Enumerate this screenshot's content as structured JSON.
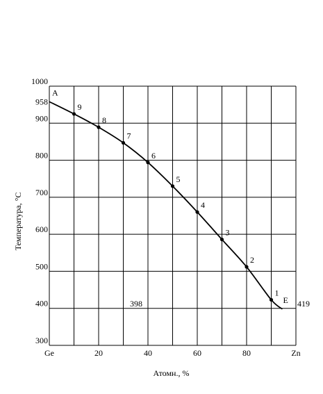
{
  "chart_data": {
    "type": "line",
    "title": "",
    "xlabel": "Атомн., %",
    "ylabel": "Температура, °C",
    "xlim": [
      0,
      100
    ],
    "ylim": [
      300,
      1000
    ],
    "x_ticks": [
      {
        "value": 0,
        "label": "Ge"
      },
      {
        "value": 20,
        "label": "20"
      },
      {
        "value": 40,
        "label": "40"
      },
      {
        "value": 60,
        "label": "60"
      },
      {
        "value": 80,
        "label": "80"
      },
      {
        "value": 100,
        "label": "Zn"
      }
    ],
    "y_ticks": [
      {
        "value": 300,
        "label": "300"
      },
      {
        "value": 400,
        "label": "400"
      },
      {
        "value": 500,
        "label": "500"
      },
      {
        "value": 600,
        "label": "600"
      },
      {
        "value": 700,
        "label": "700"
      },
      {
        "value": 800,
        "label": "800"
      },
      {
        "value": 900,
        "label": "900"
      },
      {
        "value": 1000,
        "label": "1000"
      }
    ],
    "grid": true,
    "grid_x_values": [
      0,
      10,
      20,
      30,
      40,
      50,
      60,
      70,
      80,
      90,
      100
    ],
    "grid_y_values": [
      300,
      400,
      500,
      600,
      700,
      800,
      900,
      1000
    ],
    "series": [
      {
        "name": "",
        "x": [
          0,
          10,
          20,
          30,
          40,
          50,
          60,
          70,
          80,
          90,
          94.5
        ],
        "y": [
          958,
          925,
          889,
          847,
          794,
          730,
          660,
          586,
          512,
          423,
          398
        ]
      }
    ],
    "labeled_points": [
      {
        "label": "9",
        "x": 10,
        "y": 925
      },
      {
        "label": "8",
        "x": 20,
        "y": 889
      },
      {
        "label": "7",
        "x": 30,
        "y": 847
      },
      {
        "label": "6",
        "x": 40,
        "y": 794
      },
      {
        "label": "5",
        "x": 50,
        "y": 730
      },
      {
        "label": "4",
        "x": 60,
        "y": 660
      },
      {
        "label": "3",
        "x": 70,
        "y": 586
      },
      {
        "label": "2",
        "x": 80,
        "y": 512
      },
      {
        "label": "1",
        "x": 90,
        "y": 423
      }
    ],
    "annotations": [
      {
        "text": "A",
        "x": 0,
        "y": 958
      },
      {
        "text": "E",
        "x": 94.5,
        "y": 398
      },
      {
        "text": "958",
        "x": 0,
        "y": 958
      },
      {
        "text": "398",
        "x": 40,
        "y": 398
      },
      {
        "text": "419",
        "x": 100,
        "y": 398
      }
    ],
    "line_color": "#000000",
    "grid_color": "#000000"
  }
}
